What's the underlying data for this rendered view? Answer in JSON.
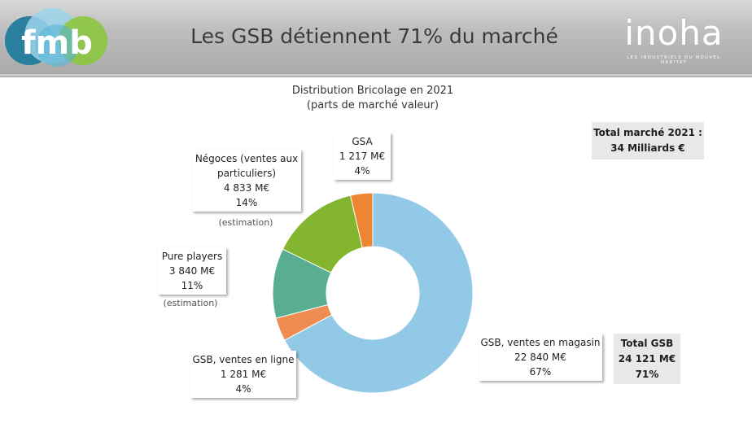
{
  "header": {
    "title": "Les GSB détiennent 71% du marché",
    "left_logo": "fmb",
    "right_logo": "inoha",
    "right_logo_tagline": "LES INDUSTRIELS DU NOUVEL HABITAT"
  },
  "chart_title_line1": "Distribution Bricolage en 2021",
  "chart_title_line2": "(parts de marché valeur)",
  "total_market": {
    "line1": "Total marché 2021 :",
    "line2": "34 Milliards €"
  },
  "gsb_total": {
    "line1": "Total GSB",
    "line2": "24 121 M€",
    "line3": "71%"
  },
  "labels": {
    "gsa": {
      "name": "GSA",
      "value": "1 217  M€",
      "pct": "4%"
    },
    "negoces": {
      "name1": "Négoces (ventes aux",
      "name2": "particuliers)",
      "value": "4 833  M€",
      "pct": "14%",
      "note": "(estimation)"
    },
    "pure": {
      "name": "Pure players",
      "value": "3 840  M€",
      "pct": "11%",
      "note": "(estimation)"
    },
    "gsb_ligne": {
      "name": "GSB, ventes en ligne",
      "value": "1 281  M€",
      "pct": "4%"
    },
    "gsb_magasin": {
      "name": "GSB, ventes en magasin",
      "value": "22 840  M€",
      "pct": "67%"
    }
  },
  "colors": {
    "gsb_magasin": "#92c9e7",
    "gsb_ligne": "#ef8c52",
    "pure": "#58ad92",
    "negoces": "#84b52e",
    "gsa": "#ee8532"
  },
  "chart_data": {
    "type": "pie",
    "donut": true,
    "title": "Distribution Bricolage en 2021",
    "subtitle": "(parts de marché valeur)",
    "unit": "M€",
    "slices": [
      {
        "label": "GSB, ventes en magasin",
        "value": 22840,
        "percent": 67
      },
      {
        "label": "GSB, ventes en ligne",
        "value": 1281,
        "percent": 4
      },
      {
        "label": "Pure players",
        "value": 3840,
        "percent": 11
      },
      {
        "label": "Négoces (ventes aux particuliers)",
        "value": 4833,
        "percent": 14
      },
      {
        "label": "GSA",
        "value": 1217,
        "percent": 4
      }
    ]
  }
}
